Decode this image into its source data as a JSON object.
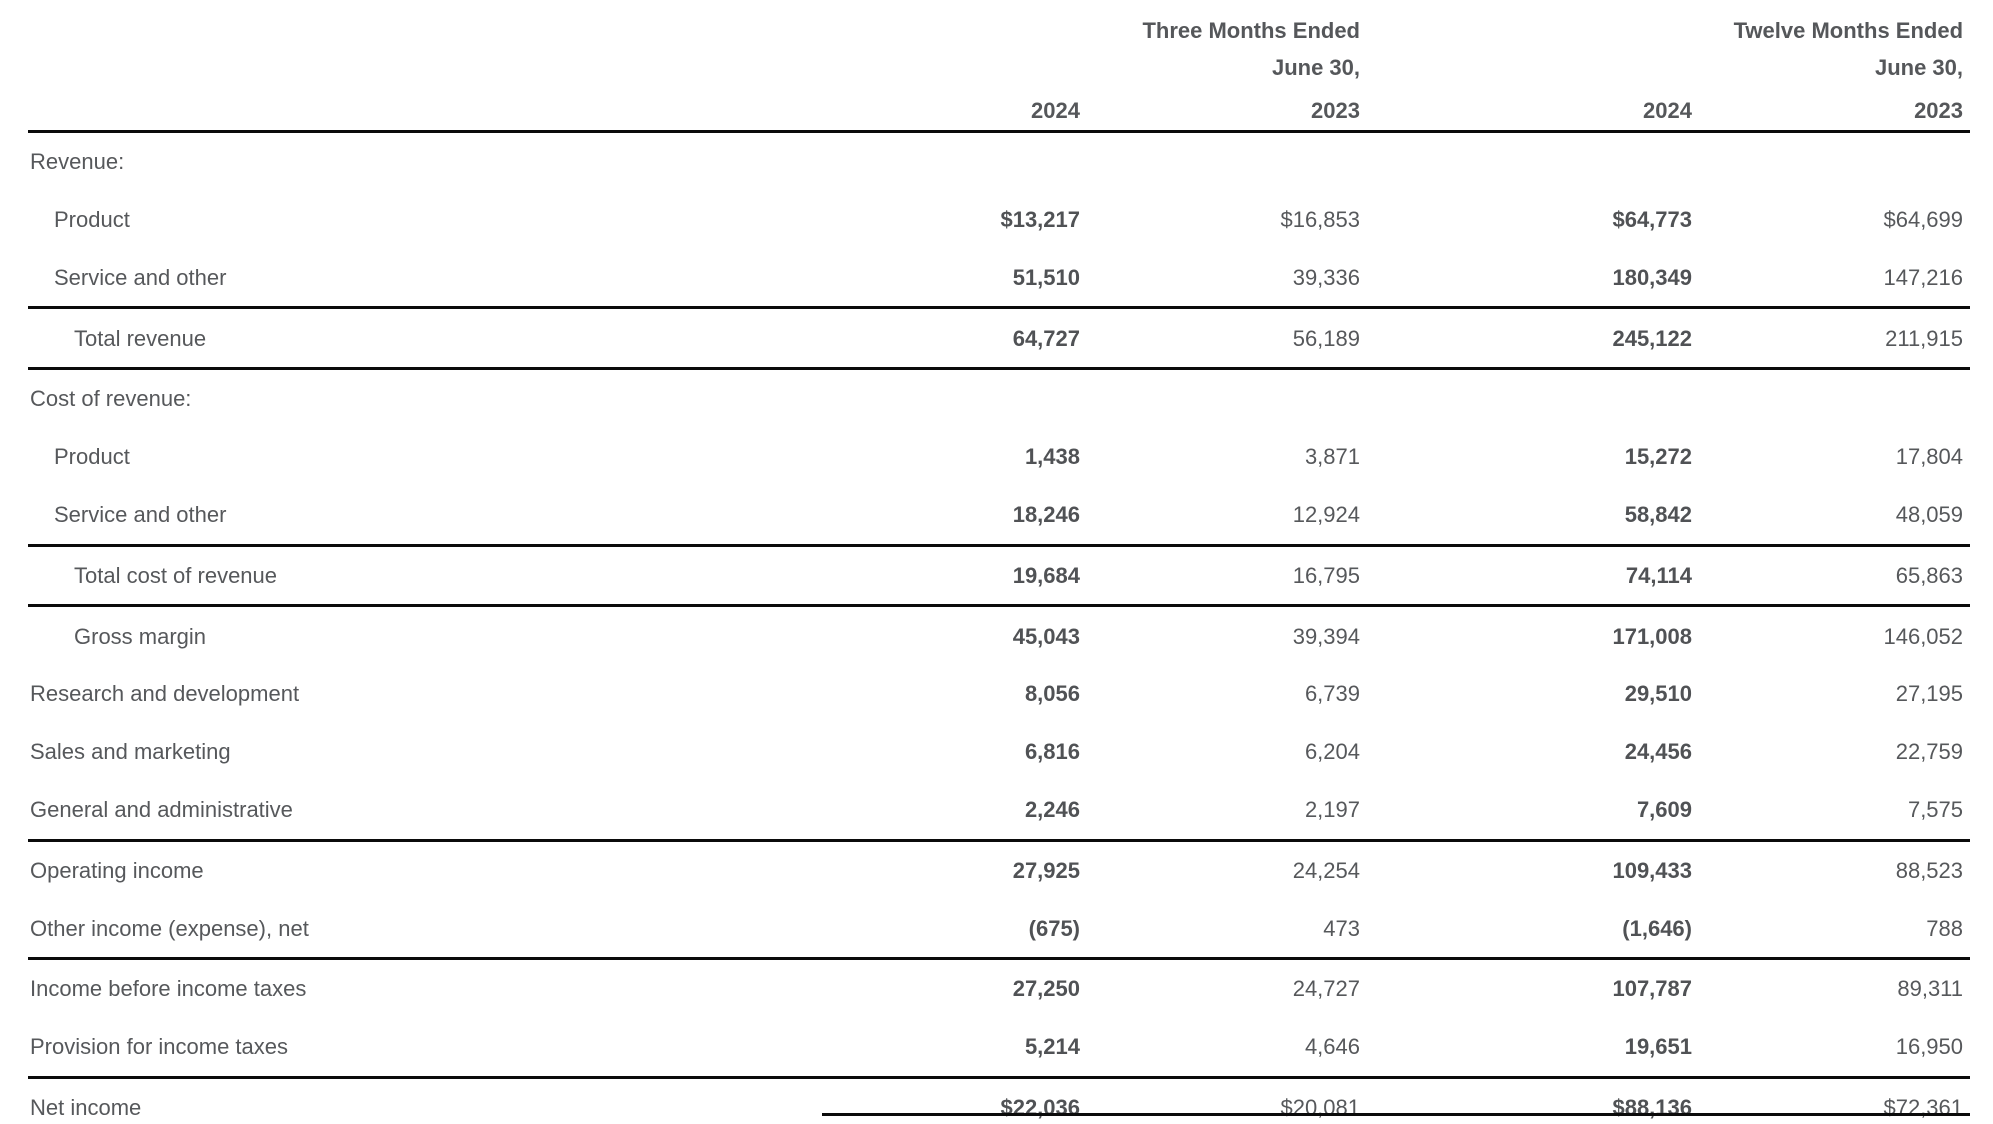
{
  "table": {
    "header": {
      "period1": "Three Months Ended",
      "period2": "Twelve Months Ended",
      "date_line1": "June 30,",
      "date_line2": "June 30,",
      "years": [
        "2024",
        "2023",
        "2024",
        "2023"
      ]
    },
    "rows": [
      {
        "label": "Revenue:",
        "values": [
          "",
          "",
          "",
          ""
        ]
      },
      {
        "label": "Product",
        "values": [
          "$13,217",
          "$16,853",
          "$64,773",
          "$64,699"
        ]
      },
      {
        "label": "Service and other",
        "values": [
          "51,510",
          "39,336",
          "180,349",
          "147,216"
        ]
      },
      {
        "label": "Total revenue",
        "values": [
          "64,727",
          "56,189",
          "245,122",
          "211,915"
        ]
      },
      {
        "label": "Cost of revenue:",
        "values": [
          "",
          "",
          "",
          ""
        ]
      },
      {
        "label": "Product",
        "values": [
          "1,438",
          "3,871",
          "15,272",
          "17,804"
        ]
      },
      {
        "label": "Service and other",
        "values": [
          "18,246",
          "12,924",
          "58,842",
          "48,059"
        ]
      },
      {
        "label": "Total cost of revenue",
        "values": [
          "19,684",
          "16,795",
          "74,114",
          "65,863"
        ]
      },
      {
        "label": "Gross margin",
        "values": [
          "45,043",
          "39,394",
          "171,008",
          "146,052"
        ]
      },
      {
        "label": "Research and development",
        "values": [
          "8,056",
          "6,739",
          "29,510",
          "27,195"
        ]
      },
      {
        "label": "Sales and marketing",
        "values": [
          "6,816",
          "6,204",
          "24,456",
          "22,759"
        ]
      },
      {
        "label": "General and administrative",
        "values": [
          "2,246",
          "2,197",
          "7,609",
          "7,575"
        ]
      },
      {
        "label": "Operating income",
        "values": [
          "27,925",
          "24,254",
          "109,433",
          "88,523"
        ]
      },
      {
        "label": "Other income (expense), net",
        "values": [
          "(675)",
          "473",
          "(1,646)",
          "788"
        ]
      },
      {
        "label": "Income before income taxes",
        "values": [
          "27,250",
          "24,727",
          "107,787",
          "89,311"
        ]
      },
      {
        "label": "Provision for income taxes",
        "values": [
          "5,214",
          "4,646",
          "19,651",
          "16,950"
        ]
      },
      {
        "label": "Net income",
        "values": [
          "$22,036",
          "$20,081",
          "$88,136",
          "$72,361"
        ]
      }
    ],
    "colors": {
      "text": "#56585b",
      "rule": "#0b0b0b",
      "background": "#ffffff"
    }
  }
}
